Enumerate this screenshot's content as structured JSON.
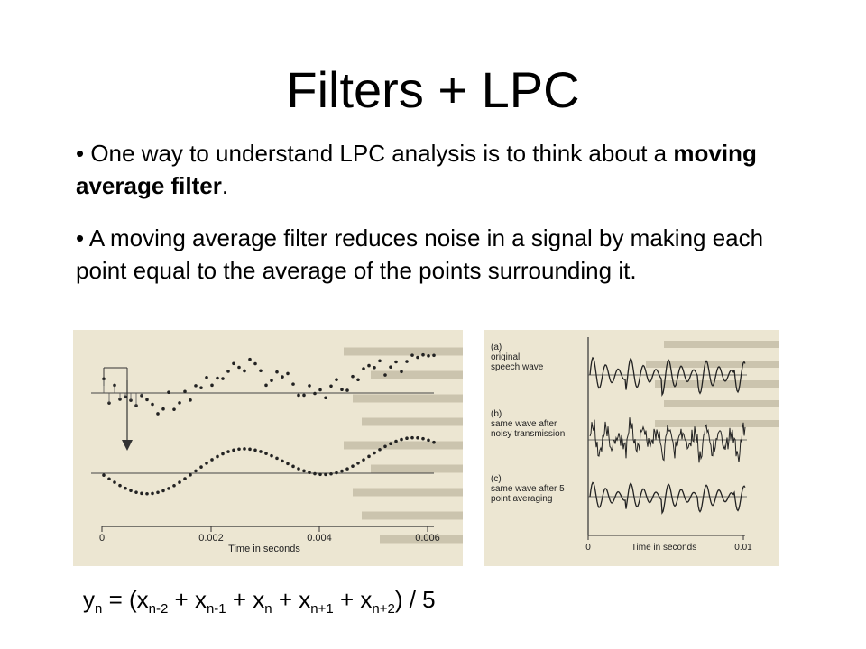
{
  "slide": {
    "title": "Filters + LPC",
    "bullets": [
      {
        "prefix": "• One way to understand LPC analysis is to think about a ",
        "bold": "moving average filter",
        "suffix": "."
      },
      {
        "text": "• A moving average filter reduces noise in a signal by making each point equal to the average of the points surrounding it."
      }
    ]
  },
  "figure_left": {
    "x_ticks": [
      "0",
      "0.002",
      "0.004",
      "0.006"
    ],
    "x_label": "Time in seconds"
  },
  "figure_right": {
    "panel_a": {
      "tag": "(a)",
      "line1": "original",
      "line2": "speech wave"
    },
    "panel_b": {
      "tag": "(b)",
      "line1": "same wave after",
      "line2": "noisy transmission"
    },
    "panel_c": {
      "tag": "(c)",
      "line1": "same wave after 5",
      "line2": "point averaging"
    },
    "x_ticks": [
      "0",
      "0.01"
    ],
    "x_label": "Time in seconds"
  },
  "formula": {
    "y": "y",
    "y_sub": "n",
    "eq": " = (",
    "t1": "x",
    "s1": "n-2",
    "t2": " + x",
    "s2": "n-1",
    "t3": " + x",
    "s3": "n",
    "t4": " + x",
    "s4": "n+1",
    "t5": " + x",
    "s5": "n+2",
    "end": ") / 5"
  }
}
